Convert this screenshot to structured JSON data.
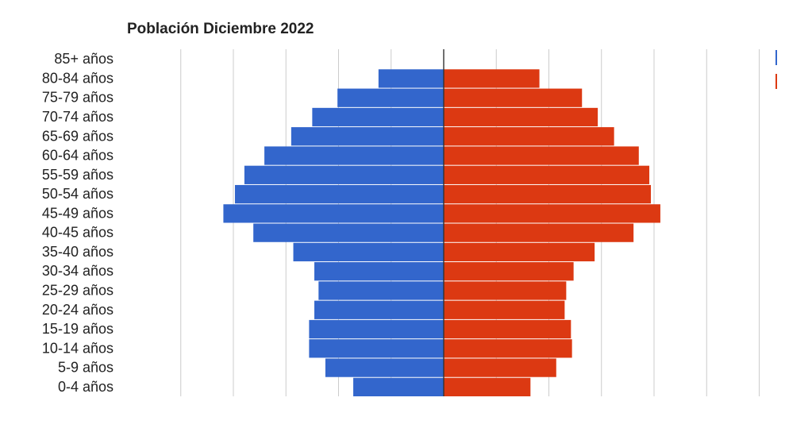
{
  "chart_data": {
    "type": "bar",
    "orientation": "horizontal",
    "layout": "population-pyramid",
    "title": "Población Diciembre 2022",
    "categories": [
      "85+ años",
      "80-84 años",
      "75-79 años",
      "70-74 años",
      "65-69 años",
      "60-64 años",
      "55-59 años",
      "50-54 años",
      "45-49 años",
      "40-45 años",
      "35-40 años",
      "30-34 años",
      "25-29 años",
      "20-24 años",
      "15-19 años",
      "10-14 años",
      "5-9 años",
      "0-4 años"
    ],
    "series": [
      {
        "color": "#3366cc",
        "side": "left",
        "values": [
          0,
          1.24,
          2.02,
          2.5,
          2.9,
          3.41,
          3.79,
          3.97,
          4.19,
          3.62,
          2.86,
          2.46,
          2.38,
          2.46,
          2.56,
          2.56,
          2.25,
          1.72
        ]
      },
      {
        "color": "#dc3912",
        "side": "right",
        "values": [
          0,
          1.82,
          2.63,
          2.93,
          3.24,
          3.71,
          3.91,
          3.94,
          4.12,
          3.61,
          2.87,
          2.47,
          2.33,
          2.3,
          2.42,
          2.44,
          2.14,
          1.65
        ]
      }
    ],
    "xlim": [
      -6,
      6
    ],
    "grid": true,
    "legend_position": "right"
  }
}
